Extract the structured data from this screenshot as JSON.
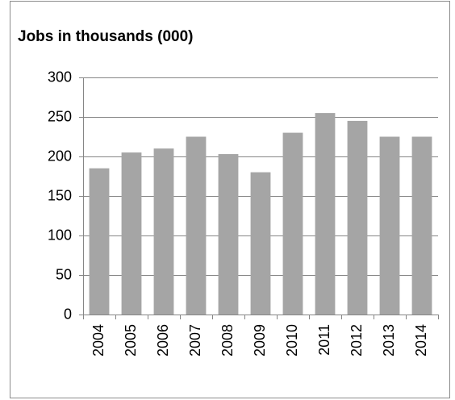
{
  "chart_data": {
    "type": "bar",
    "title": "Jobs in thousands (000)",
    "categories": [
      "2004",
      "2005",
      "2006",
      "2007",
      "2008",
      "2009",
      "2010",
      "2011",
      "2012",
      "2013",
      "2014"
    ],
    "values": [
      185,
      205,
      210,
      225,
      203,
      180,
      230,
      255,
      245,
      225,
      225
    ],
    "color": "#a5a5a5",
    "ylim": [
      0,
      300
    ],
    "yticks": [
      0,
      50,
      100,
      150,
      200,
      250,
      300
    ],
    "grid": true
  }
}
